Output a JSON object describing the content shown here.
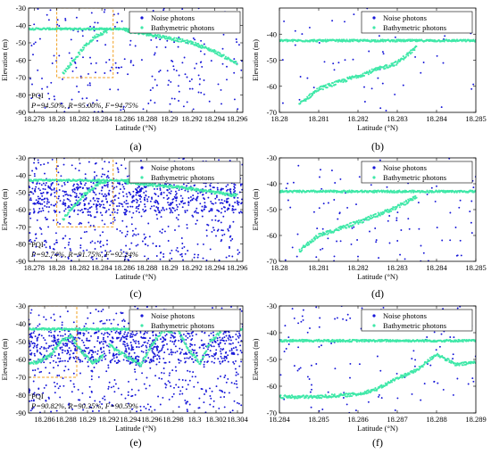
{
  "legend": {
    "noise": "Noise photons",
    "bathy": "Bathymetric photons"
  },
  "colors": {
    "noise": "#1616d8",
    "bathy": "#3fe8a8",
    "box": "#f0a020"
  },
  "chart_data": [
    {
      "id": "a",
      "type": "scatter",
      "caption": "(a)",
      "xlabel": "Latitude (°N)",
      "ylabel": "Elevation (m)",
      "xlim": [
        18.2775,
        18.2965
      ],
      "ylim": [
        -90,
        -30
      ],
      "xticks": [
        "18.278",
        "18.28",
        "18.282",
        "18.284",
        "18.286",
        "18.288",
        "18.29",
        "18.292",
        "18.294",
        "18.296"
      ],
      "xtick_values": [
        18.278,
        18.28,
        18.282,
        18.284,
        18.286,
        18.288,
        18.29,
        18.292,
        18.294,
        18.296
      ],
      "yticks": [
        "-30",
        "-40",
        "-50",
        "-60",
        "-70",
        "-80",
        "-90"
      ],
      "ytick_values": [
        -30,
        -40,
        -50,
        -60,
        -70,
        -80,
        -90
      ],
      "annotation": {
        "title": "PQI",
        "metrics": "P=94.50%, R=95.00%, F=94.75%"
      },
      "inset_box": {
        "x": [
          18.28,
          18.285
        ],
        "y": [
          -70,
          -30
        ]
      },
      "series": [
        {
          "name": "Noise photons",
          "type": "scatter",
          "density": "sparse",
          "count": 240,
          "y_range": [
            -90,
            -30
          ]
        },
        {
          "name": "Bathymetric photons",
          "type": "line-band",
          "x": [
            18.2775,
            18.296
          ],
          "y": [
            -42,
            -42
          ],
          "band": 1.0
        },
        {
          "name": "Bathymetric photons",
          "type": "line-band",
          "x": [
            18.2805,
            18.2815,
            18.2825,
            18.2835,
            18.2845
          ],
          "y": [
            -68,
            -60,
            -52,
            -46,
            -43
          ],
          "band": 2.0
        },
        {
          "name": "Bathymetric photons",
          "type": "line-band",
          "x": [
            18.286,
            18.289,
            18.292,
            18.294,
            18.296
          ],
          "y": [
            -43,
            -46,
            -50,
            -55,
            -62
          ],
          "band": 1.8
        }
      ]
    },
    {
      "id": "b",
      "type": "scatter",
      "caption": "(b)",
      "xlabel": "Latitude (°N)",
      "ylabel": "Elevation (m)",
      "xlim": [
        18.28,
        18.285
      ],
      "ylim": [
        -70,
        -30
      ],
      "xticks": [
        "18.28",
        "18.281",
        "18.282",
        "18.283",
        "18.284",
        "18.285"
      ],
      "xtick_values": [
        18.28,
        18.281,
        18.282,
        18.283,
        18.284,
        18.285
      ],
      "yticks": [
        "-40",
        "-50",
        "-60",
        "-70"
      ],
      "ytick_values": [
        -40,
        -50,
        -60,
        -70
      ],
      "series": [
        {
          "name": "Noise photons",
          "type": "scatter",
          "density": "sparse",
          "count": 60,
          "y_range": [
            -70,
            -30
          ]
        },
        {
          "name": "Bathymetric photons",
          "type": "line-band",
          "x": [
            18.28,
            18.285
          ],
          "y": [
            -42.5,
            -42.5
          ],
          "band": 0.8
        },
        {
          "name": "Bathymetric photons",
          "type": "line-band",
          "x": [
            18.2805,
            18.281,
            18.282,
            18.283,
            18.2835
          ],
          "y": [
            -67,
            -61,
            -56,
            -51,
            -45
          ],
          "band": 1.5
        }
      ]
    },
    {
      "id": "c",
      "type": "scatter",
      "caption": "(c)",
      "xlabel": "Latitude (°N)",
      "ylabel": "Elevation (m)",
      "xlim": [
        18.2775,
        18.2965
      ],
      "ylim": [
        -90,
        -30
      ],
      "xticks": [
        "18.278",
        "18.28",
        "18.282",
        "18.284",
        "18.286",
        "18.288",
        "18.29",
        "18.292",
        "18.294",
        "18.296"
      ],
      "xtick_values": [
        18.278,
        18.28,
        18.282,
        18.284,
        18.286,
        18.288,
        18.29,
        18.292,
        18.294,
        18.296
      ],
      "yticks": [
        "-30",
        "-40",
        "-50",
        "-60",
        "-70",
        "-80",
        "-90"
      ],
      "ytick_values": [
        -30,
        -40,
        -50,
        -60,
        -70,
        -80,
        -90
      ],
      "annotation": {
        "title": "PQI",
        "metrics": "P=92.74%, R=91.75%, F=92.24%"
      },
      "inset_box": {
        "x": [
          18.28,
          18.285
        ],
        "y": [
          -70,
          -30
        ]
      },
      "series": [
        {
          "name": "Noise photons",
          "type": "scatter",
          "density": "dense",
          "count": 1100,
          "y_range": [
            -90,
            -30
          ]
        },
        {
          "name": "Bathymetric photons",
          "type": "line-band",
          "x": [
            18.2775,
            18.296
          ],
          "y": [
            -43,
            -43
          ],
          "band": 1.0
        },
        {
          "name": "Bathymetric photons",
          "type": "line-band",
          "x": [
            18.2805,
            18.2815,
            18.2825,
            18.2835,
            18.2845
          ],
          "y": [
            -66,
            -58,
            -51,
            -46,
            -43
          ],
          "band": 2.0
        },
        {
          "name": "Bathymetric photons",
          "type": "line-band",
          "x": [
            18.286,
            18.289,
            18.292,
            18.294,
            18.296
          ],
          "y": [
            -44,
            -46,
            -48,
            -50,
            -52
          ],
          "band": 1.8
        }
      ]
    },
    {
      "id": "d",
      "type": "scatter",
      "caption": "(d)",
      "xlabel": "Latitude (°N)",
      "ylabel": "Elevation (m)",
      "xlim": [
        18.28,
        18.285
      ],
      "ylim": [
        -70,
        -30
      ],
      "xticks": [
        "18.28",
        "18.281",
        "18.282",
        "18.283",
        "18.284",
        "18.285"
      ],
      "xtick_values": [
        18.28,
        18.281,
        18.282,
        18.283,
        18.284,
        18.285
      ],
      "yticks": [
        "-30",
        "-40",
        "-50",
        "-60",
        "-70"
      ],
      "ytick_values": [
        -30,
        -40,
        -50,
        -60,
        -70
      ],
      "series": [
        {
          "name": "Noise photons",
          "type": "scatter",
          "density": "sparse",
          "count": 110,
          "y_range": [
            -70,
            -30
          ]
        },
        {
          "name": "Bathymetric photons",
          "type": "line-band",
          "x": [
            18.28,
            18.285
          ],
          "y": [
            -43,
            -43
          ],
          "band": 0.8
        },
        {
          "name": "Bathymetric photons",
          "type": "line-band",
          "x": [
            18.2805,
            18.281,
            18.282,
            18.283,
            18.2835
          ],
          "y": [
            -66,
            -60,
            -55,
            -49,
            -45
          ],
          "band": 1.5
        }
      ]
    },
    {
      "id": "e",
      "type": "scatter",
      "caption": "(e)",
      "xlabel": "Latitude (°N)",
      "ylabel": "Elevation (m)",
      "xlim": [
        18.2845,
        18.3045
      ],
      "ylim": [
        -90,
        -30
      ],
      "xticks": [
        "18.286",
        "18.288",
        "18.29",
        "18.292",
        "18.294",
        "18.296",
        "18.298",
        "18.3",
        "18.302",
        "18.304"
      ],
      "xtick_values": [
        18.286,
        18.288,
        18.29,
        18.292,
        18.294,
        18.296,
        18.298,
        18.3,
        18.302,
        18.304
      ],
      "yticks": [
        "-30",
        "-40",
        "-50",
        "-60",
        "-70",
        "-80",
        "-90"
      ],
      "ytick_values": [
        -30,
        -40,
        -50,
        -60,
        -70,
        -80,
        -90
      ],
      "annotation": {
        "title": "PQI",
        "metrics": "P=90.82%, R=90.35%, F=90.59%"
      },
      "inset_box": {
        "x": [
          18.2845,
          18.289
        ],
        "y": [
          -70,
          -30
        ]
      },
      "series": [
        {
          "name": "Noise photons",
          "type": "scatter",
          "density": "dense",
          "count": 1150,
          "y_range": [
            -90,
            -30
          ]
        },
        {
          "name": "Bathymetric photons",
          "type": "line-band",
          "x": [
            18.2845,
            18.3045
          ],
          "y": [
            -43,
            -43
          ],
          "band": 1.0
        },
        {
          "name": "Bathymetric photons",
          "type": "line-band",
          "x": [
            18.2845,
            18.2855,
            18.2865,
            18.2875,
            18.2885,
            18.2895,
            18.2905,
            18.2915
          ],
          "y": [
            -62,
            -61,
            -58,
            -50,
            -47,
            -56,
            -62,
            -58
          ],
          "band": 2.2
        },
        {
          "name": "Bathymetric photons",
          "type": "line-band",
          "x": [
            18.292,
            18.2935,
            18.295,
            18.296,
            18.297,
            18.298
          ],
          "y": [
            -52,
            -58,
            -63,
            -52,
            -44,
            -44
          ],
          "band": 2.0
        },
        {
          "name": "Bathymetric photons",
          "type": "line-band",
          "x": [
            18.2985,
            18.2995,
            18.3005,
            18.3015,
            18.3025
          ],
          "y": [
            -44,
            -55,
            -62,
            -50,
            -44
          ],
          "band": 2.0
        }
      ]
    },
    {
      "id": "f",
      "type": "scatter",
      "caption": "(f)",
      "xlabel": "Latitude (°N)",
      "ylabel": "Elevation (m)",
      "xlim": [
        18.284,
        18.289
      ],
      "ylim": [
        -70,
        -30
      ],
      "xticks": [
        "18.284",
        "18.285",
        "18.286",
        "18.287",
        "18.288",
        "18.289"
      ],
      "xtick_values": [
        18.284,
        18.285,
        18.286,
        18.287,
        18.288,
        18.289
      ],
      "yticks": [
        "-30",
        "-40",
        "-50",
        "-60",
        "-70"
      ],
      "ytick_values": [
        -30,
        -40,
        -50,
        -60,
        -70
      ],
      "series": [
        {
          "name": "Noise photons",
          "type": "scatter",
          "density": "sparse",
          "count": 120,
          "y_range": [
            -70,
            -30
          ]
        },
        {
          "name": "Bathymetric photons",
          "type": "line-band",
          "x": [
            18.284,
            18.289
          ],
          "y": [
            -43,
            -43
          ],
          "band": 0.8
        },
        {
          "name": "Bathymetric photons",
          "type": "line-band",
          "x": [
            18.284,
            18.285,
            18.286,
            18.2865,
            18.287,
            18.2875,
            18.288,
            18.2885,
            18.289
          ],
          "y": [
            -64,
            -64,
            -63,
            -61,
            -57,
            -54,
            -48,
            -52,
            -51
          ],
          "band": 1.2
        }
      ]
    }
  ]
}
